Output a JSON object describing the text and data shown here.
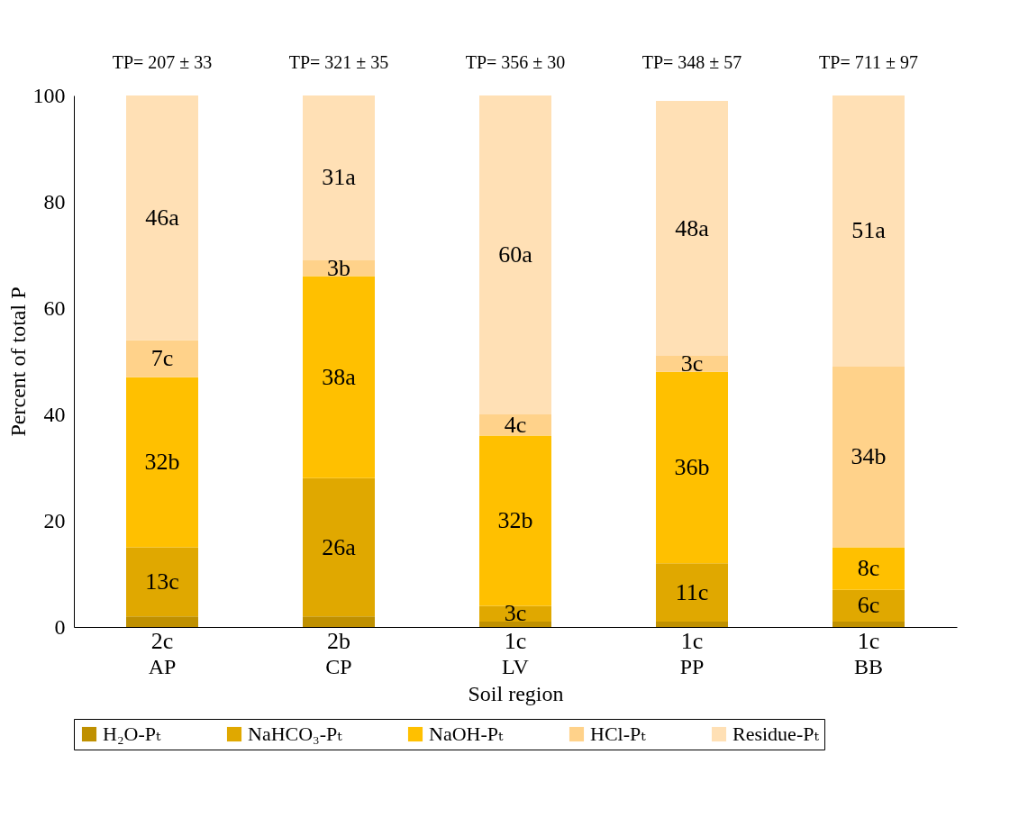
{
  "chart_data": {
    "type": "bar",
    "stacked": true,
    "xlabel": "Soil region",
    "ylabel": "Percent of total P",
    "categories": [
      "AP",
      "CP",
      "LV",
      "PP",
      "BB"
    ],
    "series": [
      {
        "name": "H₂O-Pₜ",
        "color": "#bf9000",
        "values": [
          2,
          2,
          1,
          1,
          1
        ],
        "value_labels": [
          "2c",
          "2b",
          "1c",
          "1c",
          "1c"
        ]
      },
      {
        "name": "NaHCO₃-Pₜ",
        "color": "#e0a800",
        "values": [
          13,
          26,
          3,
          11,
          6
        ],
        "value_labels": [
          "13c",
          "26a",
          "3c",
          "11c",
          "6c"
        ]
      },
      {
        "name": "NaOH-Pₜ",
        "color": "#ffc000",
        "values": [
          32,
          38,
          32,
          36,
          8
        ],
        "value_labels": [
          "32b",
          "38a",
          "32b",
          "36b",
          "8c"
        ]
      },
      {
        "name": "HCl-Pₜ",
        "color": "#ffd28a",
        "values": [
          7,
          3,
          4,
          3,
          34
        ],
        "value_labels": [
          "7c",
          "3b",
          "4c",
          "3c",
          "34b"
        ]
      },
      {
        "name": "Residue-Pₜ",
        "color": "#ffe0b5",
        "values": [
          46,
          31,
          60,
          48,
          51
        ],
        "value_labels": [
          "46a",
          "31a",
          "60a",
          "48a",
          "51a"
        ]
      }
    ],
    "ylim": [
      0,
      100
    ],
    "yticks": [
      0,
      20,
      40,
      60,
      80,
      100
    ],
    "grid": false,
    "legend": "bottom",
    "annotations": [
      "TP= 207 ± 33",
      "TP= 321 ± 35",
      "TP= 356 ± 30",
      "TP= 348 ± 57",
      "TP= 711 ± 97"
    ]
  }
}
